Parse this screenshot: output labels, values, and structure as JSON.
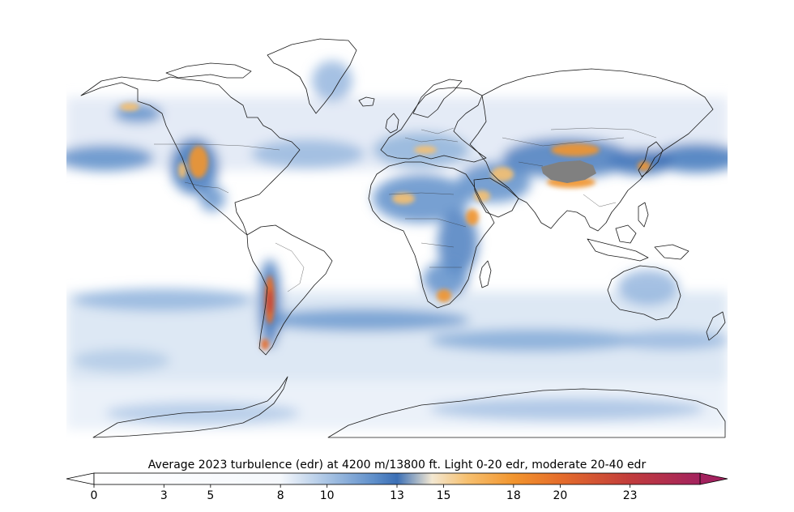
{
  "map": {
    "projection": "plate-carree",
    "extent": {
      "lon": [
        -180,
        180
      ],
      "lat": [
        -90,
        90
      ]
    },
    "field": "average turbulence (edr)",
    "colormap": {
      "name": "white-blue-orange-maroon",
      "stops": [
        {
          "value": 0,
          "color": "#ffffff"
        },
        {
          "value": 8,
          "color": "#f5f8fc"
        },
        {
          "value": 10,
          "color": "#a9c4e4"
        },
        {
          "value": 12,
          "color": "#5f8fca"
        },
        {
          "value": 13,
          "color": "#3b6fb5"
        },
        {
          "value": 14.5,
          "color": "#f3e8d2"
        },
        {
          "value": 16,
          "color": "#f6c070"
        },
        {
          "value": 18,
          "color": "#f2952e"
        },
        {
          "value": 20,
          "color": "#e56d2b"
        },
        {
          "value": 23,
          "color": "#c13c3c"
        },
        {
          "value": 26,
          "color": "#a3225e"
        }
      ],
      "missing_color": "#808080"
    }
  },
  "colorbar": {
    "title": "Average 2023 turbulence (edr) at 4200 m/13800 ft. Light 0-20 edr, moderate 20-40 edr",
    "min": 0,
    "max": 26,
    "extend": "both",
    "ticks": [
      {
        "value": 0,
        "label": "0"
      },
      {
        "value": 3,
        "label": "3"
      },
      {
        "value": 5,
        "label": "5"
      },
      {
        "value": 8,
        "label": "8"
      },
      {
        "value": 10,
        "label": "10"
      },
      {
        "value": 13,
        "label": "13"
      },
      {
        "value": 15,
        "label": "15"
      },
      {
        "value": 18,
        "label": "18"
      },
      {
        "value": 20,
        "label": "20"
      },
      {
        "value": 23,
        "label": "23"
      }
    ]
  }
}
